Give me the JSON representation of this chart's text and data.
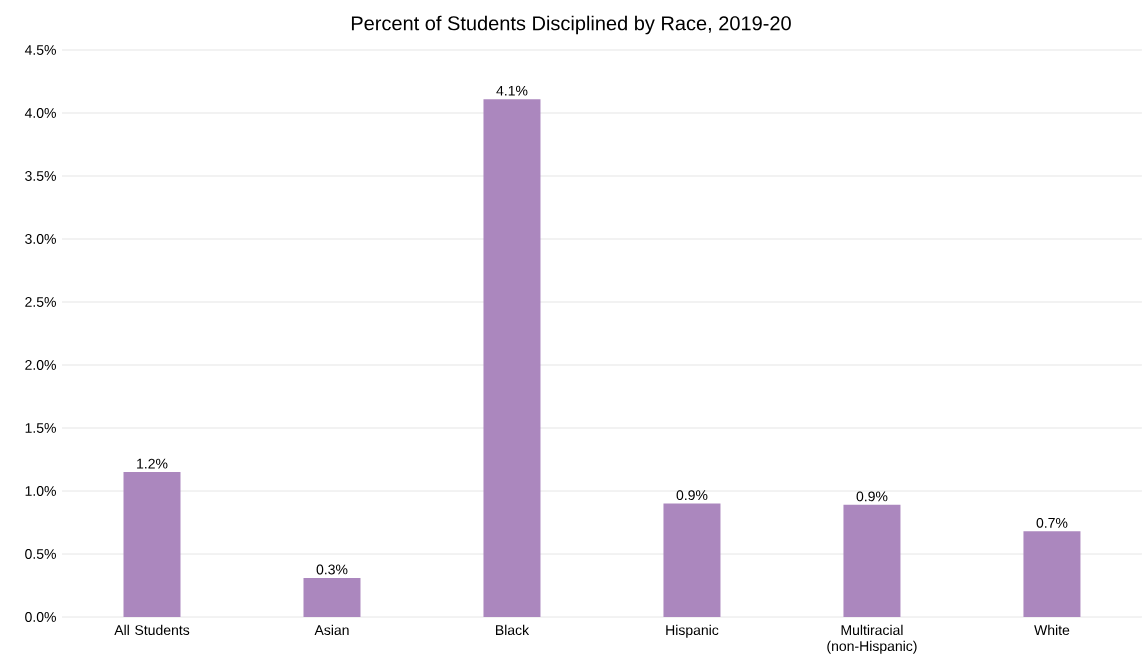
{
  "chart_data": {
    "type": "bar",
    "title": "Percent of Students Disciplined by Race, 2019-20",
    "categories": [
      "All Students",
      "Asian",
      "Black",
      "Hispanic",
      "Multiracial (non-Hispanic)",
      "White"
    ],
    "values": [
      1.15,
      0.31,
      4.11,
      0.9,
      0.89,
      0.68
    ],
    "value_labels": [
      "1.2%",
      "0.3%",
      "4.1%",
      "0.9%",
      "0.9%",
      "0.7%"
    ],
    "color": "#ab87be",
    "ylim": [
      0,
      4.5
    ],
    "yticks": [
      {
        "value": 0,
        "label": "0.0%"
      },
      {
        "value": 0.5,
        "label": "0.5%"
      },
      {
        "value": 1,
        "label": "1.0%"
      },
      {
        "value": 1.5,
        "label": "1.5%"
      },
      {
        "value": 2,
        "label": "2.0%"
      },
      {
        "value": 2.5,
        "label": "2.5%"
      },
      {
        "value": 3,
        "label": "3.0%"
      },
      {
        "value": 3.5,
        "label": "3.5%"
      },
      {
        "value": 4,
        "label": "4.0%"
      },
      {
        "value": 4.5,
        "label": "4.5%"
      }
    ],
    "grid": "y"
  }
}
